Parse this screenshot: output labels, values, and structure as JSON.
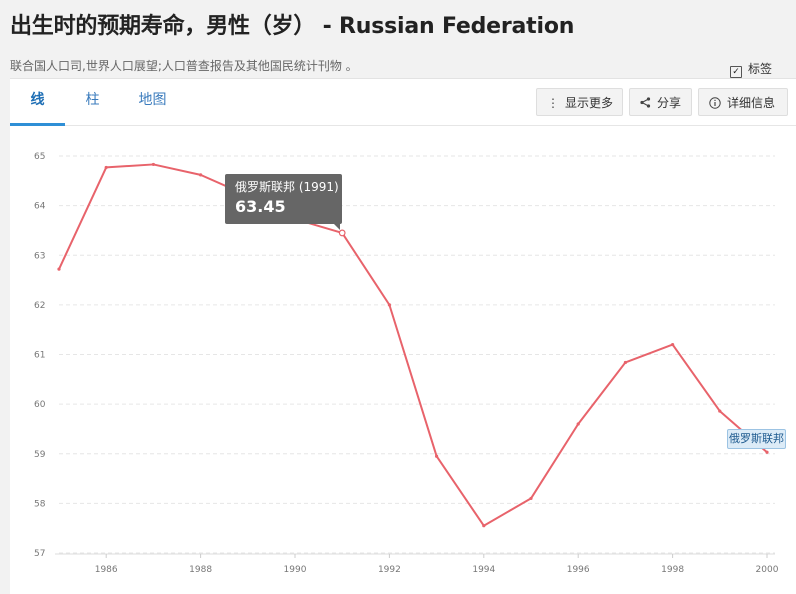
{
  "header": {
    "title": "出生时的预期寿命，男性（岁） - Russian Federation",
    "source": "联合国人口司,世界人口展望;人口普查报告及其他国民统计刊物 。"
  },
  "tabs": [
    {
      "label": "线",
      "active": true
    },
    {
      "label": "柱",
      "active": false
    },
    {
      "label": "地图",
      "active": false
    }
  ],
  "toolbar": {
    "more_label": "显示更多",
    "share_label": "分享",
    "details_label": "详细信息",
    "more_icon": "vertical-dots-icon",
    "share_icon": "share-icon",
    "details_icon": "info-icon"
  },
  "labels_toggle": {
    "label": "标签",
    "checked": true
  },
  "tooltip": {
    "name": "俄罗斯联邦 (1991)",
    "value": "63.45"
  },
  "series_tag": "俄罗斯联邦",
  "chart_data": {
    "type": "line",
    "x": [
      1985,
      1986,
      1987,
      1988,
      1989,
      1990,
      1991,
      1992,
      1993,
      1994,
      1995,
      1996,
      1997,
      1998,
      1999,
      2000
    ],
    "series": [
      {
        "name": "俄罗斯联邦",
        "values": [
          62.72,
          64.77,
          64.83,
          64.62,
          64.2,
          63.73,
          63.45,
          62.0,
          58.95,
          57.55,
          58.1,
          59.6,
          60.84,
          61.2,
          59.86,
          59.03
        ],
        "color": "#e8636b"
      }
    ],
    "xticks": [
      1986,
      1988,
      1990,
      1992,
      1994,
      1996,
      1998,
      2000
    ],
    "yticks": [
      57,
      58,
      59,
      60,
      61,
      62,
      63,
      64,
      65
    ],
    "xlim": [
      1985,
      2000
    ],
    "ylim": [
      57,
      65
    ],
    "grid": true,
    "highlight_index": 6
  }
}
